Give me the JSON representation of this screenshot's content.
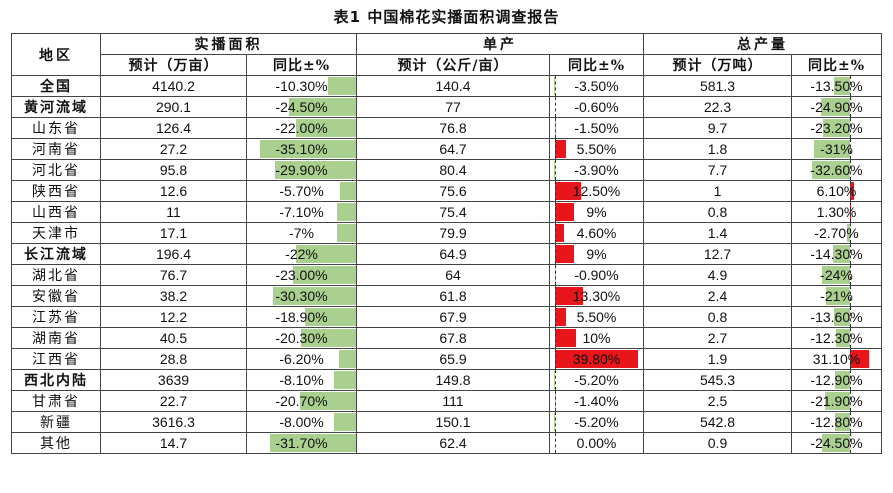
{
  "title": "表1 中国棉花实播面积调查报告",
  "headers": {
    "region": "地区",
    "area": "实播面积",
    "unit_yield": "单产",
    "total_output": "总产量",
    "area_est": "预计（万亩）",
    "yoy": "同比±%",
    "yield_est": "预计（公斤/亩）",
    "output_est": "预计（万吨）"
  },
  "colors": {
    "negative_bar": "#a9d08e",
    "positive_bar": "#e8151b"
  },
  "rows": [
    {
      "region": "全国",
      "bold": true,
      "area": "4140.2",
      "area_yoy": "-10.30%",
      "area_yoy_v": -10.3,
      "yield": "140.4",
      "yield_yoy": "-3.50%",
      "yield_yoy_v": -3.5,
      "output": "581.3",
      "output_yoy": "-13.50%",
      "output_yoy_v": -13.5
    },
    {
      "region": "黄河流域",
      "bold": true,
      "area": "290.1",
      "area_yoy": "-24.50%",
      "area_yoy_v": -24.5,
      "yield": "77",
      "yield_yoy": "-0.60%",
      "yield_yoy_v": -0.6,
      "output": "22.3",
      "output_yoy": "-24.90%",
      "output_yoy_v": -24.9
    },
    {
      "region": "山东省",
      "bold": false,
      "area": "126.4",
      "area_yoy": "-22.00%",
      "area_yoy_v": -22.0,
      "yield": "76.8",
      "yield_yoy": "-1.50%",
      "yield_yoy_v": -1.5,
      "output": "9.7",
      "output_yoy": "-23.20%",
      "output_yoy_v": -23.2
    },
    {
      "region": "河南省",
      "bold": false,
      "area": "27.2",
      "area_yoy": "-35.10%",
      "area_yoy_v": -35.1,
      "yield": "64.7",
      "yield_yoy": "5.50%",
      "yield_yoy_v": 5.5,
      "output": "1.8",
      "output_yoy": "-31%",
      "output_yoy_v": -31.0
    },
    {
      "region": "河北省",
      "bold": false,
      "area": "95.8",
      "area_yoy": "-29.90%",
      "area_yoy_v": -29.9,
      "yield": "80.4",
      "yield_yoy": "-3.90%",
      "yield_yoy_v": -3.9,
      "output": "7.7",
      "output_yoy": "-32.60%",
      "output_yoy_v": -32.6
    },
    {
      "region": "陕西省",
      "bold": false,
      "area": "12.6",
      "area_yoy": "-5.70%",
      "area_yoy_v": -5.7,
      "yield": "75.6",
      "yield_yoy": "12.50%",
      "yield_yoy_v": 12.5,
      "output": "1",
      "output_yoy": "6.10%",
      "output_yoy_v": 6.1
    },
    {
      "region": "山西省",
      "bold": false,
      "area": "11",
      "area_yoy": "-7.10%",
      "area_yoy_v": -7.1,
      "yield": "75.4",
      "yield_yoy": "9%",
      "yield_yoy_v": 9.0,
      "output": "0.8",
      "output_yoy": "1.30%",
      "output_yoy_v": 1.3
    },
    {
      "region": "天津市",
      "bold": false,
      "area": "17.1",
      "area_yoy": "-7%",
      "area_yoy_v": -7.0,
      "yield": "79.9",
      "yield_yoy": "4.60%",
      "yield_yoy_v": 4.6,
      "output": "1.4",
      "output_yoy": "-2.70%",
      "output_yoy_v": -2.7
    },
    {
      "region": "长江流域",
      "bold": true,
      "area": "196.4",
      "area_yoy": "-22%",
      "area_yoy_v": -22.0,
      "yield": "64.9",
      "yield_yoy": "9%",
      "yield_yoy_v": 9.0,
      "output": "12.7",
      "output_yoy": "-14.30%",
      "output_yoy_v": -14.3
    },
    {
      "region": "湖北省",
      "bold": false,
      "area": "76.7",
      "area_yoy": "-23.00%",
      "area_yoy_v": -23.0,
      "yield": "64",
      "yield_yoy": "-0.90%",
      "yield_yoy_v": -0.9,
      "output": "4.9",
      "output_yoy": "-24%",
      "output_yoy_v": -24.0
    },
    {
      "region": "安徽省",
      "bold": false,
      "area": "38.2",
      "area_yoy": "-30.30%",
      "area_yoy_v": -30.3,
      "yield": "61.8",
      "yield_yoy": "13.30%",
      "yield_yoy_v": 13.3,
      "output": "2.4",
      "output_yoy": "-21%",
      "output_yoy_v": -21.0
    },
    {
      "region": "江苏省",
      "bold": false,
      "area": "12.2",
      "area_yoy": "-18.90%",
      "area_yoy_v": -18.9,
      "yield": "67.9",
      "yield_yoy": "5.50%",
      "yield_yoy_v": 5.5,
      "output": "0.8",
      "output_yoy": "-13.60%",
      "output_yoy_v": -13.6
    },
    {
      "region": "湖南省",
      "bold": false,
      "area": "40.5",
      "area_yoy": "-20.30%",
      "area_yoy_v": -20.3,
      "yield": "67.8",
      "yield_yoy": "10%",
      "yield_yoy_v": 10.0,
      "output": "2.7",
      "output_yoy": "-12.30%",
      "output_yoy_v": -12.3
    },
    {
      "region": "江西省",
      "bold": false,
      "area": "28.8",
      "area_yoy": "-6.20%",
      "area_yoy_v": -6.2,
      "yield": "65.9",
      "yield_yoy": "39.80%",
      "yield_yoy_v": 39.8,
      "output": "1.9",
      "output_yoy": "31.10%",
      "output_yoy_v": 31.1
    },
    {
      "region": "西北内陆",
      "bold": true,
      "area": "3639",
      "area_yoy": "-8.10%",
      "area_yoy_v": -8.1,
      "yield": "149.8",
      "yield_yoy": "-5.20%",
      "yield_yoy_v": -5.2,
      "output": "545.3",
      "output_yoy": "-12.90%",
      "output_yoy_v": -12.9
    },
    {
      "region": "甘肃省",
      "bold": false,
      "area": "22.7",
      "area_yoy": "-20.70%",
      "area_yoy_v": -20.7,
      "yield": "111",
      "yield_yoy": "-1.40%",
      "yield_yoy_v": -1.4,
      "output": "2.5",
      "output_yoy": "-21.90%",
      "output_yoy_v": -21.9
    },
    {
      "region": "新疆",
      "bold": false,
      "area": "3616.3",
      "area_yoy": "-8.00%",
      "area_yoy_v": -8.0,
      "yield": "150.1",
      "yield_yoy": "-5.20%",
      "yield_yoy_v": -5.2,
      "output": "542.8",
      "output_yoy": "-12.80%",
      "output_yoy_v": -12.8
    },
    {
      "region": "其他",
      "bold": false,
      "area": "14.7",
      "area_yoy": "-31.70%",
      "area_yoy_v": -31.7,
      "yield": "62.4",
      "yield_yoy": "0.00%",
      "yield_yoy_v": 0.0,
      "output": "0.9",
      "output_yoy": "-24.50%",
      "output_yoy_v": -24.5
    }
  ]
}
